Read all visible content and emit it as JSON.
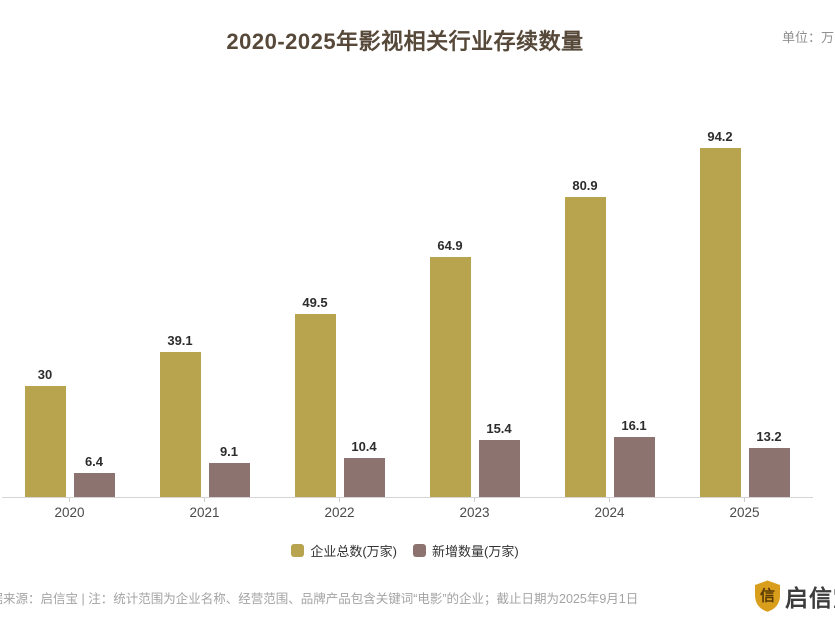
{
  "header": {
    "title": "2020-2025年影视相关行业存续数量",
    "unit_label": "单位：万"
  },
  "chart_data": {
    "type": "bar",
    "title": "2020-2025年影视相关行业存续数量",
    "unit_label": "单位：万",
    "categories": [
      "2020",
      "2021",
      "2022",
      "2023",
      "2024",
      "2025"
    ],
    "series": [
      {
        "name": "企业总数(万家)",
        "color": "#B8A44F",
        "values": [
          30,
          39.1,
          49.5,
          64.9,
          80.9,
          94.2
        ]
      },
      {
        "name": "新增数量(万家)",
        "color": "#8C7370",
        "values": [
          6.4,
          9.1,
          10.4,
          15.4,
          16.1,
          13.2
        ]
      }
    ],
    "value_labels_shown": true,
    "grid": false,
    "legend_position": "bottom",
    "ylim": [
      0,
      100
    ]
  },
  "footer": {
    "source_note": "数据来源：启信宝 | 注：统计范围为企业名称、经营范围、品牌产品包含关键词“电影”的企业；截止日期为2025年9月1日",
    "logo_text": "启信宝",
    "logo_shield_char": "信"
  },
  "colors": {
    "series_total": "#B8A44F",
    "series_new": "#8C7370",
    "axis_line": "#D4D4D4",
    "tick": "#CCCCCC",
    "title_text": "#57493A",
    "value_text": "#2D2D2D",
    "x_label_text": "#4A4A4A",
    "legend_text": "#333333",
    "unit_text": "#8F8F8F",
    "footer_text": "#A3A3A3",
    "logo_gold": "#D99E1C",
    "logo_glyph": "#5A3A05"
  }
}
